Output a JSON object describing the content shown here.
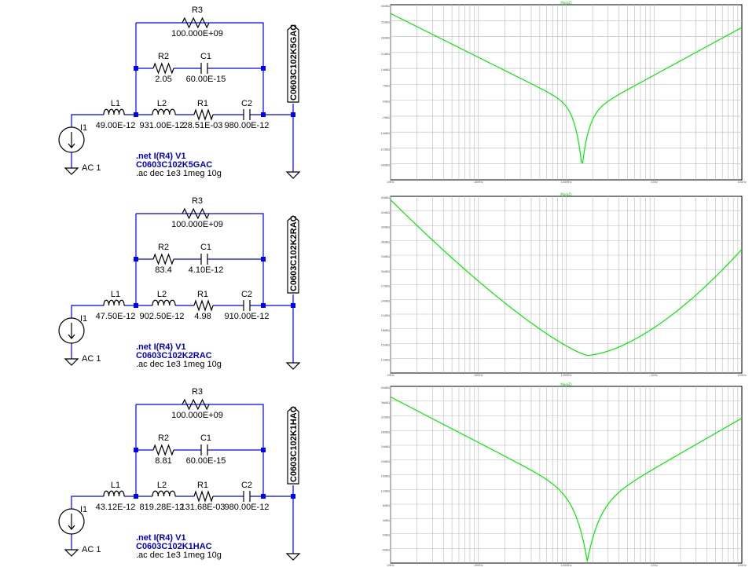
{
  "schematics": [
    {
      "components": {
        "L1": "49.00E-12",
        "L2": "931.00E-12",
        "R1": "28.51E-03",
        "C2": "980.00E-12",
        "R2": "2.05",
        "C1": "60.00E-15",
        "R3": "100.000E+09"
      },
      "names": {
        "L1": "L1",
        "L2": "L2",
        "R1": "R1",
        "C2": "C2",
        "R2": "R2",
        "C1": "C1",
        "R3": "R3",
        "I1": "I1"
      },
      "source": "AC 1",
      "net_label": "C0603C102K5GAC",
      "directives": [
        ".net I(R4) V1",
        "C0603C102K5GAC",
        ".ac dec 1e3 1meg 10g"
      ]
    },
    {
      "components": {
        "L1": "47.50E-12",
        "L2": "902.50E-12",
        "R1": "4.98",
        "C2": "910.00E-12",
        "R2": "83.4",
        "C1": "4.10E-12",
        "R3": "100.000E+09"
      },
      "names": {
        "L1": "L1",
        "L2": "L2",
        "R1": "R1",
        "C2": "C2",
        "R2": "R2",
        "C1": "C1",
        "R3": "R3",
        "I1": "I1"
      },
      "source": "AC 1",
      "net_label": "C0603C102K2RAC",
      "directives": [
        ".net I(R4) V1",
        "C0603C102K2RAC",
        ".ac dec 1e3 1meg 10g"
      ]
    },
    {
      "components": {
        "L1": "43.12E-12",
        "L2": "819.28E-12",
        "R1": "131.68E-03",
        "C2": "980.00E-12",
        "R2": "8.81",
        "C1": "60.00E-15",
        "R3": "100.000E+09"
      },
      "names": {
        "L1": "L1",
        "L2": "L2",
        "R1": "R1",
        "C2": "C2",
        "R2": "R2",
        "C1": "C1",
        "R3": "R3",
        "I1": "I1"
      },
      "source": "AC 1",
      "net_label": "C0603C102K1HAC",
      "directives": [
        ".net I(R4) V1",
        "C0603C102K1HAC",
        ".ac dec 1e3 1meg 10g"
      ]
    }
  ],
  "plots": [
    {
      "title": "Mag(Z)",
      "x_ticks": [
        "1MHz",
        "10MHz",
        "100MHz",
        "1GHz",
        "10GHz"
      ],
      "y_ticks": [
        "40dBΩ",
        "35dBΩ",
        "28dBΩ",
        "21dBΩ",
        "14dBΩ",
        "7dBΩ",
        "0dBΩ",
        "-7dBΩ",
        "-14dBΩ",
        "-21dBΩ",
        "-28dBΩ"
      ],
      "colors": {
        "trace": "#00ee00",
        "grid": "#b9b9b9"
      }
    },
    {
      "title": "Mag(Z)",
      "x_ticks": [
        "1MHz",
        "10MHz",
        "100MHz",
        "1GHz",
        "10GHz"
      ],
      "y_ticks": [
        "45dBΩ",
        "42dBΩ",
        "39dBΩ",
        "36dBΩ",
        "33dBΩ",
        "30dBΩ",
        "27dBΩ",
        "24dBΩ",
        "21dBΩ",
        "18dBΩ",
        "15dBΩ",
        "12dBΩ"
      ],
      "colors": {
        "trace": "#00ee00",
        "grid": "#b9b9b9"
      }
    },
    {
      "title": "Mag(Z)",
      "x_ticks": [
        "1MHz",
        "10MHz",
        "100MHz",
        "1GHz",
        "10GHz"
      ],
      "y_ticks": [
        "40dBΩ",
        "36dBΩ",
        "32dBΩ",
        "28dBΩ",
        "24dBΩ",
        "20dBΩ",
        "16dBΩ",
        "12dBΩ",
        "8dBΩ",
        "4dBΩ",
        "0dBΩ",
        "-4dBΩ"
      ],
      "colors": {
        "trace": "#00ee00",
        "grid": "#b9b9b9"
      }
    }
  ]
}
